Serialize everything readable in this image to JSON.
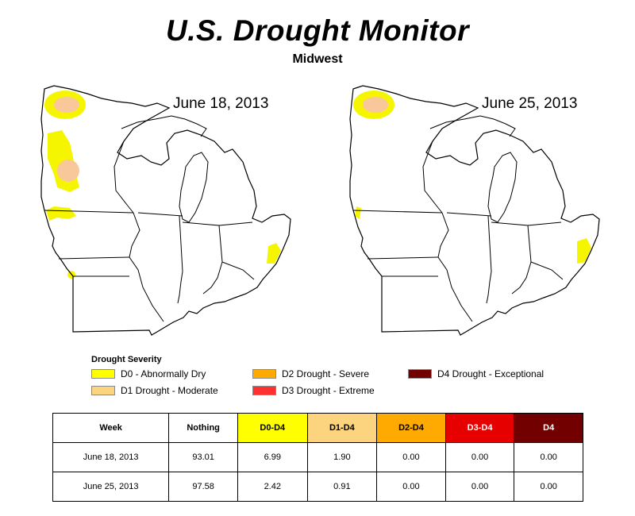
{
  "title": "U.S. Drought Monitor",
  "subtitle": "Midwest",
  "maps": [
    {
      "date": "June 18, 2013"
    },
    {
      "date": "June 25, 2013"
    }
  ],
  "legend": {
    "title": "Drought Severity",
    "items": [
      {
        "label": "D0 - Abnormally Dry",
        "color": "#FFFF00"
      },
      {
        "label": "D1 Drought - Moderate",
        "color": "#FCD37F"
      },
      {
        "label": "D2 Drought - Severe",
        "color": "#FFAA00"
      },
      {
        "label": "D3 Drought - Extreme",
        "color": "#E60000"
      },
      {
        "label": "D4 Drought - Exceptional",
        "color": "#730000"
      }
    ]
  },
  "colors": {
    "d0": "#FFFF00",
    "d1": "#FCD37F",
    "d2": "#FFAA00",
    "d3": "#E60000",
    "d4": "#730000",
    "map_d0": "#F5F500",
    "map_d1": "#F8C89A",
    "map_outline": "#000000"
  },
  "table": {
    "headers": [
      "Week",
      "Nothing",
      "D0-D4",
      "D1-D4",
      "D2-D4",
      "D3-D4",
      "D4"
    ],
    "rows": [
      [
        "June 18, 2013",
        "93.01",
        "6.99",
        "1.90",
        "0.00",
        "0.00",
        "0.00"
      ],
      [
        "June 25, 2013",
        "97.58",
        "2.42",
        "0.91",
        "0.00",
        "0.00",
        "0.00"
      ]
    ]
  }
}
